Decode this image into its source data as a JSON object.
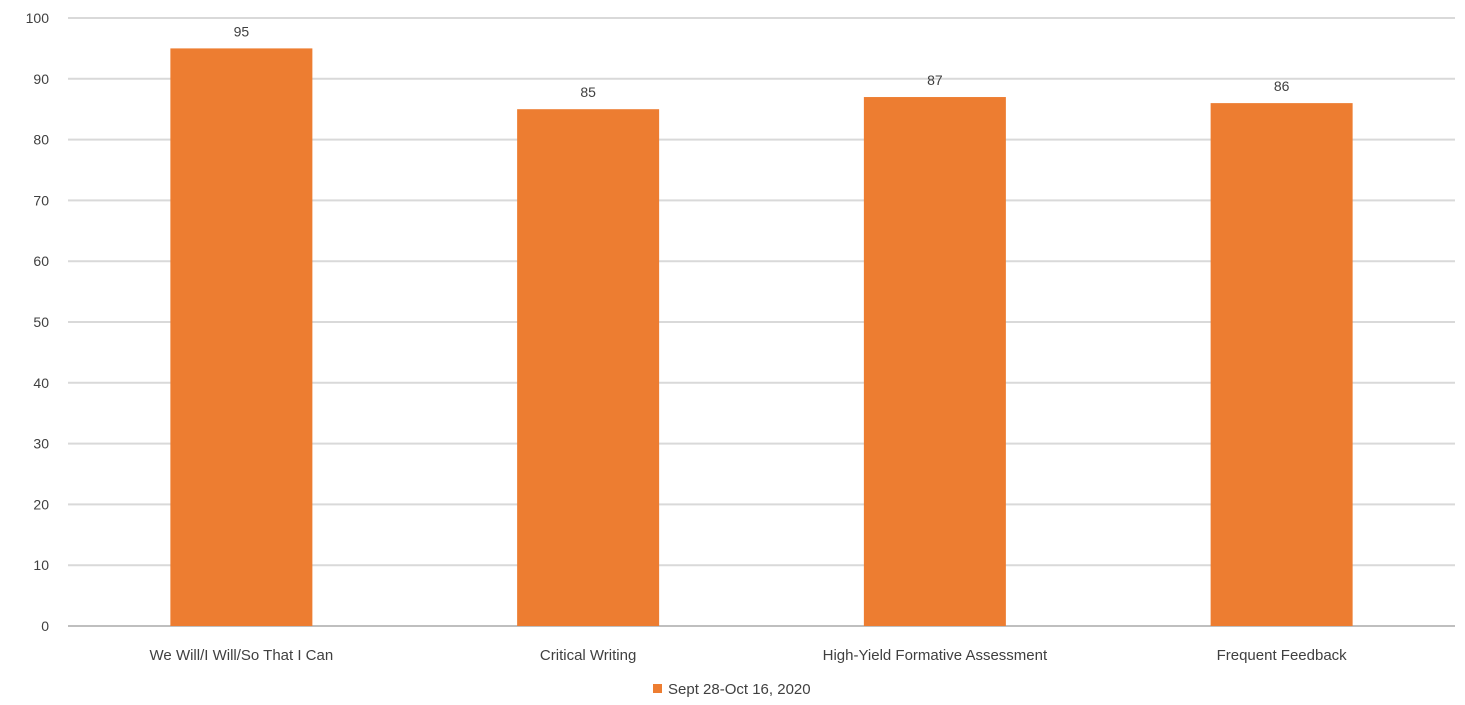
{
  "chart_data": {
    "type": "bar",
    "title": "",
    "xlabel": "",
    "ylabel": "",
    "categories": [
      "We Will/I Will/So That I Can",
      "Critical Writing",
      "High-Yield Formative Assessment",
      "Frequent Feedback"
    ],
    "series": [
      {
        "name": "Sept 28-Oct 16, 2020",
        "values": [
          95,
          85,
          87,
          86
        ],
        "color": "#ED7D31"
      }
    ],
    "ylim": [
      0,
      100
    ],
    "yticks": [
      0,
      10,
      20,
      30,
      40,
      50,
      60,
      70,
      80,
      90,
      100
    ],
    "grid": true,
    "legend": "bottom-center",
    "data_labels": true
  }
}
